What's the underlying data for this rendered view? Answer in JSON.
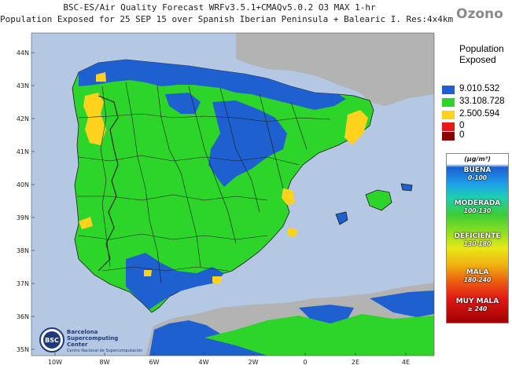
{
  "header": {
    "line1": "BSC-ES/Air Quality Forecast WRFv3.5.1+CMAQv5.0.2 O3 MAX 1-hr",
    "line2": "Population Exposed for 25 SEP 15 over Spanish Iberian Peninsula + Balearic I. Res:4x4km",
    "brand": "Ozono"
  },
  "map": {
    "lat_labels": [
      "44N",
      "43N",
      "42N",
      "41N",
      "40N",
      "39N",
      "38N",
      "37N",
      "36N",
      "35N"
    ],
    "lon_labels": [
      "10W",
      "8W",
      "6W",
      "4W",
      "2W",
      "0",
      "2E",
      "4E"
    ],
    "colors": {
      "sea": "#b4c8e4",
      "land_other": "#b3b3b3",
      "good": "#1e60d0",
      "moderate": "#2dd42a",
      "deficient": "#ffd21e",
      "bad": "#e81818",
      "very_bad": "#8b0000",
      "border": "#1b1b1b"
    }
  },
  "population_legend": {
    "title_line1": "Population",
    "title_line2": "Exposed",
    "entries": [
      {
        "value": "9.010.532",
        "color": "#1e60d0"
      },
      {
        "value": "33.108.728",
        "color": "#2dd42a"
      },
      {
        "value": "2.500.594",
        "color": "#ffd21e"
      },
      {
        "value": "0",
        "color": "#e81818"
      },
      {
        "value": "0",
        "color": "#8b0000"
      }
    ]
  },
  "aq_scale": {
    "unit": "(µg/m³)",
    "categories": [
      {
        "name": "BUENA",
        "range": "0-100"
      },
      {
        "name": "MODERADA",
        "range": "100-130"
      },
      {
        "name": "DEFICIENTE",
        "range": "130-180"
      },
      {
        "name": "MALA",
        "range": "180-240"
      },
      {
        "name": "MUY MALA",
        "range": "≥ 240"
      }
    ]
  },
  "logo": {
    "abbrev": "BSC",
    "line1": "Barcelona",
    "line2": "Supercomputing",
    "line3": "Center",
    "line4": "Centro Nacional de Supercomputación"
  }
}
